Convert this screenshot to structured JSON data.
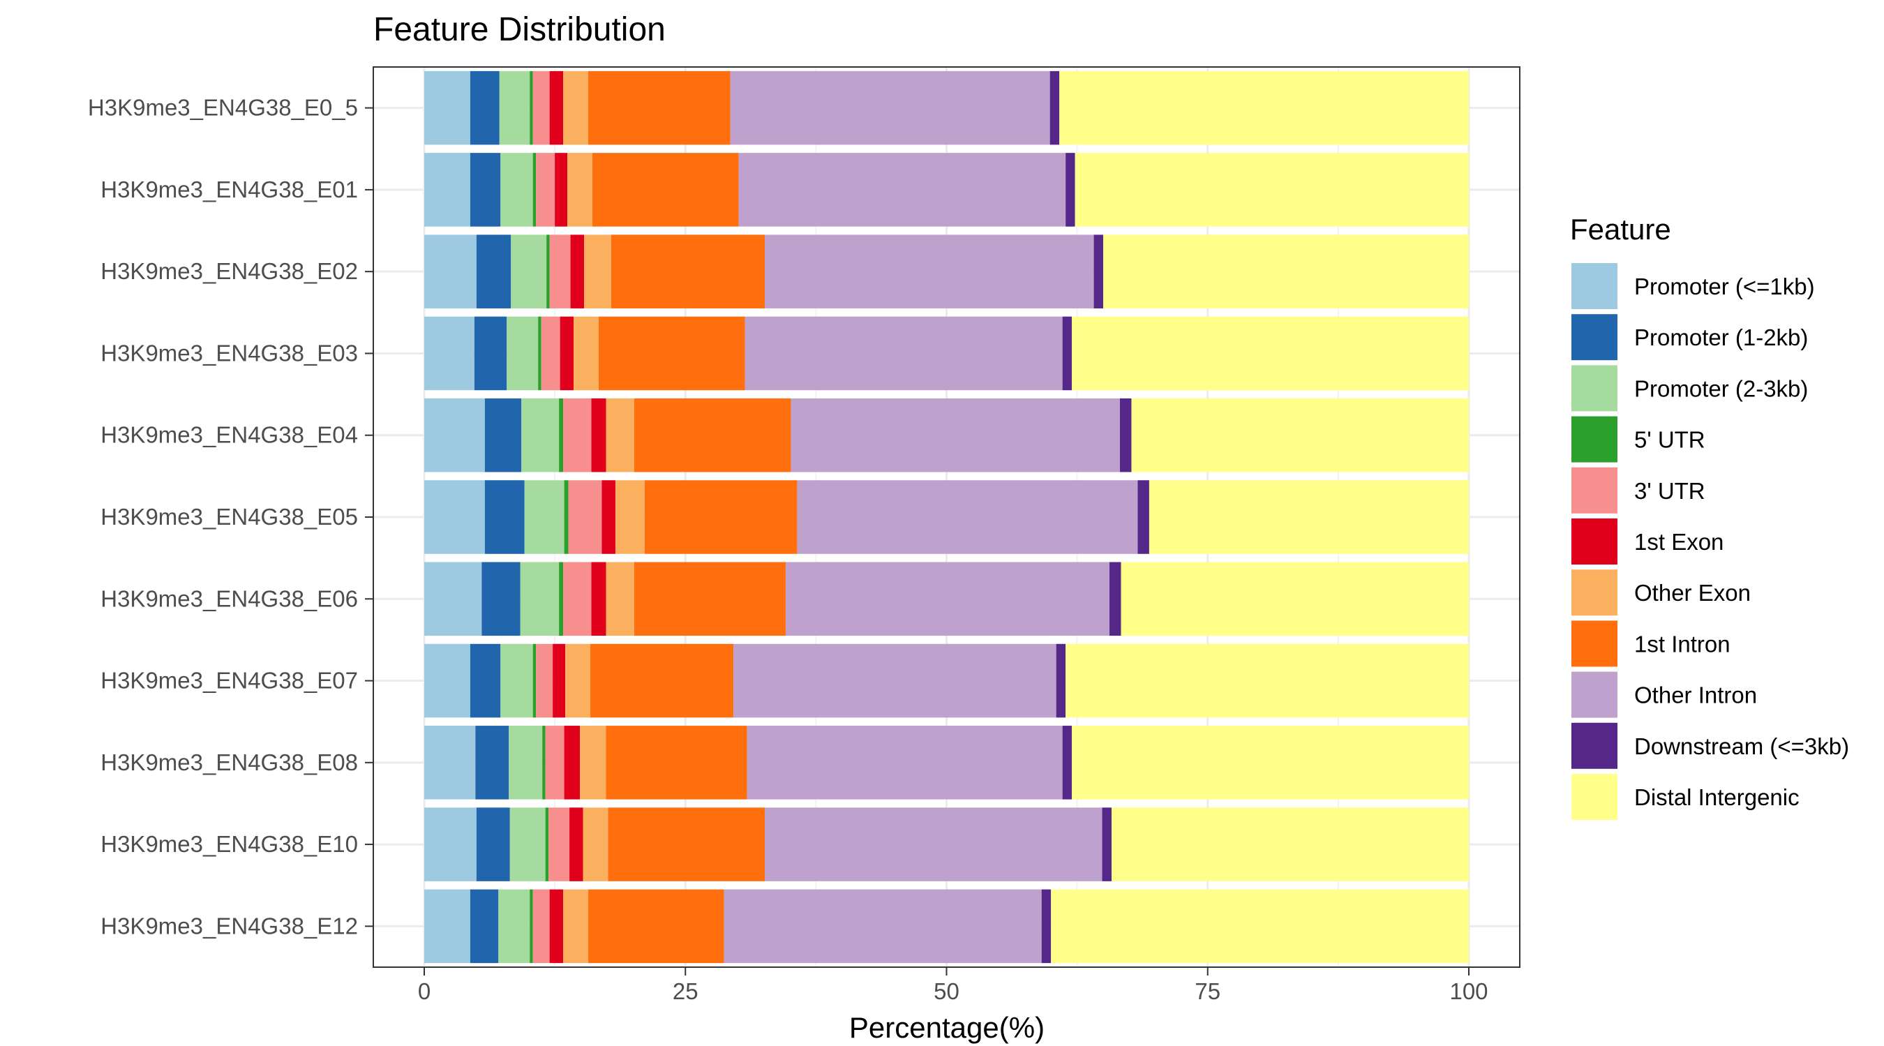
{
  "chart_data": {
    "type": "bar",
    "orientation": "horizontal",
    "stacked": true,
    "title": "Feature Distribution",
    "xlabel": "Percentage(%)",
    "ylabel": "",
    "xlim": [
      0,
      100
    ],
    "xticks": [
      0,
      25,
      50,
      75,
      100
    ],
    "grid": true,
    "legend_position": "right",
    "legend_title": "Feature",
    "categories": [
      "H3K9me3_EN4G38_E0_5",
      "H3K9me3_EN4G38_E01",
      "H3K9me3_EN4G38_E02",
      "H3K9me3_EN4G38_E03",
      "H3K9me3_EN4G38_E04",
      "H3K9me3_EN4G38_E05",
      "H3K9me3_EN4G38_E06",
      "H3K9me3_EN4G38_E07",
      "H3K9me3_EN4G38_E08",
      "H3K9me3_EN4G38_E10",
      "H3K9me3_EN4G38_E12"
    ],
    "series": [
      {
        "name": "Promoter (<=1kb)",
        "color": "#9ECAE1",
        "values": [
          4.4,
          4.4,
          5.0,
          4.8,
          5.8,
          5.8,
          5.5,
          4.4,
          4.9,
          5.0,
          4.4
        ]
      },
      {
        "name": "Promoter (1-2kb)",
        "color": "#2166AC",
        "values": [
          2.8,
          2.9,
          3.3,
          3.1,
          3.5,
          3.8,
          3.7,
          2.9,
          3.2,
          3.2,
          2.7
        ]
      },
      {
        "name": "Promoter (2-3kb)",
        "color": "#A6DBA0",
        "values": [
          2.9,
          3.1,
          3.4,
          3.0,
          3.6,
          3.8,
          3.7,
          3.1,
          3.2,
          3.4,
          3.0
        ]
      },
      {
        "name": "5' UTR",
        "color": "#2CA02C",
        "values": [
          0.3,
          0.3,
          0.3,
          0.3,
          0.4,
          0.4,
          0.4,
          0.3,
          0.3,
          0.3,
          0.3
        ]
      },
      {
        "name": "3' UTR",
        "color": "#F88F8F",
        "values": [
          1.6,
          1.8,
          2.0,
          1.8,
          2.7,
          3.2,
          2.7,
          1.6,
          1.8,
          2.0,
          1.6
        ]
      },
      {
        "name": "1st Exon",
        "color": "#E0001B",
        "values": [
          1.3,
          1.2,
          1.3,
          1.3,
          1.4,
          1.3,
          1.4,
          1.2,
          1.5,
          1.3,
          1.3
        ]
      },
      {
        "name": "Other Exon",
        "color": "#FBB060",
        "values": [
          2.4,
          2.4,
          2.6,
          2.4,
          2.7,
          2.8,
          2.7,
          2.4,
          2.5,
          2.4,
          2.4
        ]
      },
      {
        "name": "1st Intron",
        "color": "#FF6F0E",
        "values": [
          13.6,
          14.0,
          14.7,
          14.0,
          15.0,
          14.6,
          14.5,
          13.7,
          13.5,
          15.0,
          13.0
        ]
      },
      {
        "name": "Other Intron",
        "color": "#BFA1CD",
        "values": [
          30.6,
          31.3,
          31.5,
          30.4,
          31.5,
          32.6,
          31.0,
          30.9,
          30.2,
          32.3,
          30.4
        ]
      },
      {
        "name": "Downstream (<=3kb)",
        "color": "#542788",
        "values": [
          0.9,
          0.9,
          0.9,
          0.9,
          1.1,
          1.1,
          1.1,
          0.9,
          0.9,
          0.9,
          0.9
        ]
      },
      {
        "name": "Distal Intergenic",
        "color": "#FFFF8A",
        "values": [
          39.2,
          37.7,
          35.0,
          38.0,
          32.3,
          30.6,
          33.3,
          38.6,
          38.0,
          34.2,
          40.0
        ]
      }
    ]
  }
}
